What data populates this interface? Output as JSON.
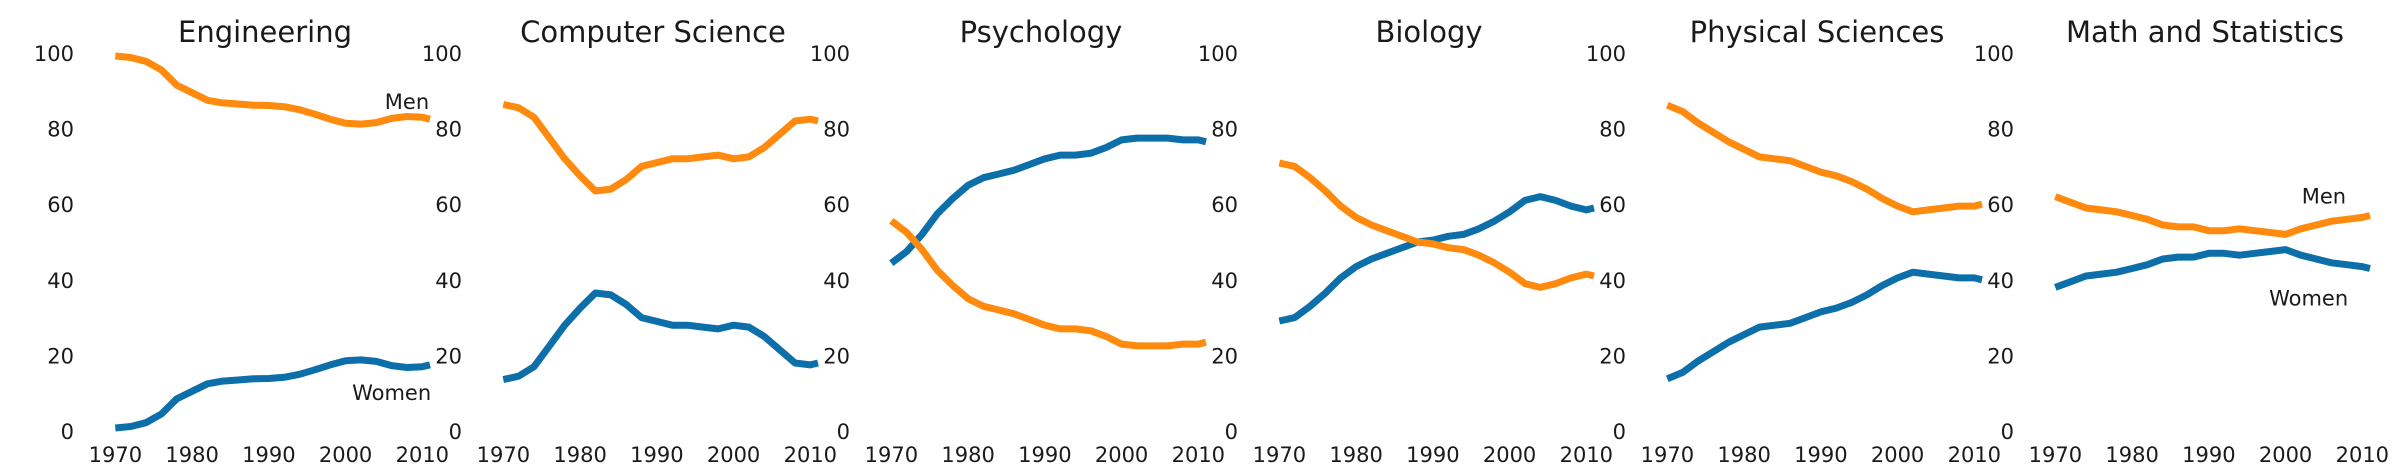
{
  "figure": {
    "background": "#ffffff",
    "series_colors": {
      "Women": "#0C6FA9",
      "Men": "#FF8A0E"
    }
  },
  "chart_data": [
    {
      "type": "line",
      "title": "Engineering",
      "x": [
        1970,
        1972,
        1974,
        1976,
        1978,
        1980,
        1982,
        1984,
        1986,
        1988,
        1990,
        1992,
        1994,
        1996,
        1998,
        2000,
        2002,
        2004,
        2006,
        2008,
        2010,
        2011
      ],
      "series": [
        {
          "name": "Women",
          "values": [
            0.8,
            1.2,
            2.2,
            4.5,
            8.5,
            10.5,
            12.5,
            13.2,
            13.5,
            13.8,
            13.9,
            14.2,
            15.0,
            16.2,
            17.5,
            18.6,
            18.8,
            18.4,
            17.3,
            16.8,
            17.0,
            17.5
          ]
        },
        {
          "name": "Men",
          "values": [
            99.2,
            98.8,
            97.8,
            95.5,
            91.5,
            89.5,
            87.5,
            86.8,
            86.5,
            86.2,
            86.1,
            85.8,
            85.0,
            83.8,
            82.5,
            81.4,
            81.2,
            81.6,
            82.7,
            83.2,
            83.0,
            82.5
          ]
        }
      ],
      "annotations": [
        {
          "text": "Men",
          "x": 2008,
          "y": 87
        },
        {
          "text": "Women",
          "x": 2006,
          "y": 10
        }
      ],
      "xlim": [
        1968,
        2011
      ],
      "ylim": [
        0,
        100
      ],
      "xticks": [
        1970,
        1980,
        1990,
        2000,
        2010
      ],
      "yticks": [
        0,
        20,
        40,
        60,
        80,
        100
      ],
      "grid": false
    },
    {
      "type": "line",
      "title": "Computer Science",
      "x": [
        1970,
        1972,
        1974,
        1976,
        1978,
        1980,
        1982,
        1984,
        1986,
        1988,
        1990,
        1992,
        1994,
        1996,
        1998,
        2000,
        2002,
        2004,
        2006,
        2008,
        2010,
        2011
      ],
      "series": [
        {
          "name": "Women",
          "values": [
            13.6,
            14.5,
            17.0,
            22.5,
            28.0,
            32.5,
            36.5,
            36.0,
            33.5,
            30.0,
            29.0,
            28.0,
            28.0,
            27.5,
            27.0,
            28.0,
            27.5,
            25.0,
            21.5,
            18.0,
            17.5,
            18.0
          ]
        },
        {
          "name": "Men",
          "values": [
            86.4,
            85.5,
            83.0,
            77.5,
            72.0,
            67.5,
            63.5,
            64.0,
            66.5,
            70.0,
            71.0,
            72.0,
            72.0,
            72.5,
            73.0,
            72.0,
            72.5,
            75.0,
            78.5,
            82.0,
            82.5,
            82.0
          ]
        }
      ],
      "xlim": [
        1968,
        2011
      ],
      "ylim": [
        0,
        100
      ],
      "xticks": [
        1970,
        1980,
        1990,
        2000,
        2010
      ],
      "yticks": [
        0,
        20,
        40,
        60,
        80,
        100
      ],
      "grid": false
    },
    {
      "type": "line",
      "title": "Psychology",
      "x": [
        1970,
        1972,
        1974,
        1976,
        1978,
        1980,
        1982,
        1984,
        1986,
        1988,
        1990,
        1992,
        1994,
        1996,
        1998,
        2000,
        2002,
        2004,
        2006,
        2008,
        2010,
        2011
      ],
      "series": [
        {
          "name": "Women",
          "values": [
            44.4,
            47.5,
            52.0,
            57.5,
            61.5,
            65.0,
            67.0,
            68.0,
            69.0,
            70.5,
            72.0,
            73.0,
            73.0,
            73.5,
            75.0,
            77.0,
            77.5,
            77.5,
            77.5,
            77.0,
            77.0,
            76.5
          ]
        },
        {
          "name": "Men",
          "values": [
            55.6,
            52.5,
            48.0,
            42.5,
            38.5,
            35.0,
            33.0,
            32.0,
            31.0,
            29.5,
            28.0,
            27.0,
            27.0,
            26.5,
            25.0,
            23.0,
            22.5,
            22.5,
            22.5,
            23.0,
            23.0,
            23.5
          ]
        }
      ],
      "xlim": [
        1968,
        2011
      ],
      "ylim": [
        0,
        100
      ],
      "xticks": [
        1970,
        1980,
        1990,
        2000,
        2010
      ],
      "yticks": [
        0,
        20,
        40,
        60,
        80,
        100
      ],
      "grid": false
    },
    {
      "type": "line",
      "title": "Biology",
      "x": [
        1970,
        1972,
        1974,
        1976,
        1978,
        1980,
        1982,
        1984,
        1986,
        1988,
        1990,
        1992,
        1994,
        1996,
        1998,
        2000,
        2002,
        2004,
        2006,
        2008,
        2010,
        2011
      ],
      "series": [
        {
          "name": "Women",
          "values": [
            29.1,
            30.0,
            33.0,
            36.5,
            40.5,
            43.5,
            45.5,
            47.0,
            48.5,
            50.0,
            50.5,
            51.5,
            52.0,
            53.5,
            55.5,
            58.0,
            61.0,
            62.0,
            61.0,
            59.5,
            58.5,
            59.0
          ]
        },
        {
          "name": "Men",
          "values": [
            70.9,
            70.0,
            67.0,
            63.5,
            59.5,
            56.5,
            54.5,
            53.0,
            51.5,
            50.0,
            49.5,
            48.5,
            48.0,
            46.5,
            44.5,
            42.0,
            39.0,
            38.0,
            39.0,
            40.5,
            41.5,
            41.0
          ]
        }
      ],
      "xlim": [
        1968,
        2011
      ],
      "ylim": [
        0,
        100
      ],
      "xticks": [
        1970,
        1980,
        1990,
        2000,
        2010
      ],
      "yticks": [
        0,
        20,
        40,
        60,
        80,
        100
      ],
      "grid": false
    },
    {
      "type": "line",
      "title": "Physical Sciences",
      "x": [
        1970,
        1972,
        1974,
        1976,
        1978,
        1980,
        1982,
        1984,
        1986,
        1988,
        1990,
        1992,
        1994,
        1996,
        1998,
        2000,
        2002,
        2004,
        2006,
        2008,
        2010,
        2011
      ],
      "series": [
        {
          "name": "Women",
          "values": [
            13.8,
            15.5,
            18.5,
            21.0,
            23.5,
            25.5,
            27.5,
            28.0,
            28.5,
            30.0,
            31.5,
            32.5,
            34.0,
            36.0,
            38.5,
            40.5,
            42.0,
            41.5,
            41.0,
            40.5,
            40.5,
            40.0
          ]
        },
        {
          "name": "Men",
          "values": [
            86.2,
            84.5,
            81.5,
            79.0,
            76.5,
            74.5,
            72.5,
            72.0,
            71.5,
            70.0,
            68.5,
            67.5,
            66.0,
            64.0,
            61.5,
            59.5,
            58.0,
            58.5,
            59.0,
            59.5,
            59.5,
            60.0
          ]
        }
      ],
      "xlim": [
        1968,
        2011
      ],
      "ylim": [
        0,
        100
      ],
      "xticks": [
        1970,
        1980,
        1990,
        2000,
        2010
      ],
      "yticks": [
        0,
        20,
        40,
        60,
        80,
        100
      ],
      "grid": false
    },
    {
      "type": "line",
      "title": "Math and Statistics",
      "x": [
        1970,
        1972,
        1974,
        1976,
        1978,
        1980,
        1982,
        1984,
        1986,
        1988,
        1990,
        1992,
        1994,
        1996,
        1998,
        2000,
        2002,
        2004,
        2006,
        2008,
        2010,
        2011
      ],
      "series": [
        {
          "name": "Women",
          "values": [
            38.0,
            39.5,
            41.0,
            41.5,
            42.0,
            43.0,
            44.0,
            45.5,
            46.0,
            46.0,
            47.0,
            47.0,
            46.5,
            47.0,
            47.5,
            48.0,
            46.5,
            45.5,
            44.5,
            44.0,
            43.5,
            43.0
          ]
        },
        {
          "name": "Men",
          "values": [
            62.0,
            60.5,
            59.0,
            58.5,
            58.0,
            57.0,
            56.0,
            54.5,
            54.0,
            54.0,
            53.0,
            53.0,
            53.5,
            53.0,
            52.5,
            52.0,
            53.5,
            54.5,
            55.5,
            56.0,
            56.5,
            57.0
          ]
        }
      ],
      "annotations": [
        {
          "text": "Men",
          "x": 2005,
          "y": 62
        },
        {
          "text": "Women",
          "x": 2003,
          "y": 35
        }
      ],
      "xlim": [
        1968,
        2011
      ],
      "ylim": [
        0,
        100
      ],
      "xticks": [
        1970,
        1980,
        1990,
        2000,
        2010
      ],
      "yticks": [
        0,
        20,
        40,
        60,
        80,
        100
      ],
      "grid": false
    }
  ]
}
